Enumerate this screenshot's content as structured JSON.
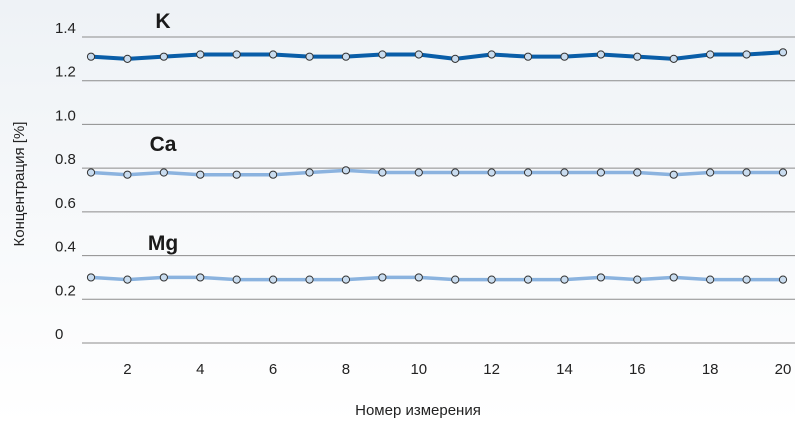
{
  "chart_data": {
    "type": "line",
    "xlabel": "Номер измерения",
    "ylabel": "Концентрация [%]",
    "xlim": [
      0.6,
      20.2
    ],
    "ylim": [
      0,
      1.4
    ],
    "xticks": [
      2,
      4,
      6,
      8,
      10,
      12,
      14,
      16,
      18,
      20
    ],
    "yticks": [
      0,
      0.2,
      0.4,
      0.6,
      0.8,
      1.0,
      1.2,
      1.4
    ],
    "ytick_labels": [
      "0",
      "0.2",
      "0.4",
      "0.6",
      "0.8",
      "1.0",
      "1.2",
      "1.4"
    ],
    "grid": "horizontal",
    "x": [
      1,
      2,
      3,
      4,
      5,
      6,
      7,
      8,
      9,
      10,
      11,
      12,
      13,
      14,
      15,
      16,
      17,
      18,
      19,
      20
    ],
    "series": [
      {
        "name": "K",
        "color": "#0a5ea8",
        "values": [
          1.31,
          1.3,
          1.31,
          1.32,
          1.32,
          1.32,
          1.31,
          1.31,
          1.32,
          1.32,
          1.3,
          1.32,
          1.31,
          1.31,
          1.32,
          1.31,
          1.3,
          1.32,
          1.32,
          1.33
        ]
      },
      {
        "name": "Ca",
        "color": "#8bb3df",
        "values": [
          0.78,
          0.77,
          0.78,
          0.77,
          0.77,
          0.77,
          0.78,
          0.79,
          0.78,
          0.78,
          0.78,
          0.78,
          0.78,
          0.78,
          0.78,
          0.78,
          0.77,
          0.78,
          0.78,
          0.78
        ]
      },
      {
        "name": "Mg",
        "color": "#8bb3df",
        "values": [
          0.3,
          0.29,
          0.3,
          0.3,
          0.29,
          0.29,
          0.29,
          0.29,
          0.3,
          0.3,
          0.29,
          0.29,
          0.29,
          0.29,
          0.3,
          0.29,
          0.3,
          0.29,
          0.29,
          0.29
        ]
      }
    ],
    "colors": {
      "background_top": "#eef2f6",
      "background_bottom": "#ffffff",
      "grid": "#8c8c8c",
      "marker_fill": "#c9dcef",
      "marker_stroke": "#333333"
    }
  }
}
